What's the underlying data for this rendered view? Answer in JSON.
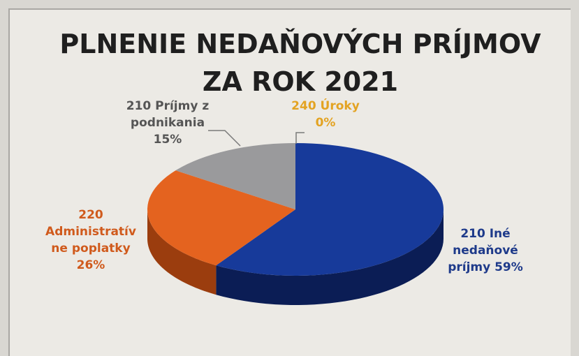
{
  "chart_data": {
    "type": "pie",
    "title_lines": [
      "PLNENIE NEDAŇOVÝCH PRÍJMOV",
      "ZA ROK 2021"
    ],
    "slices": [
      {
        "label_lines": [
          "210 Iné",
          "nedaňové",
          "príjmy  59%"
        ],
        "value": 59,
        "color": "#173a9a",
        "side_color": "#0b1d55",
        "label_color": "#1e3a8a"
      },
      {
        "label_lines": [
          "220",
          "Administratív",
          "ne poplatky",
          "26%"
        ],
        "value": 26,
        "color": "#e4631f",
        "side_color": "#9b3d0e",
        "label_color": "#d05a1c"
      },
      {
        "label_lines": [
          "210 Príjmy z",
          "podnikania",
          "15%"
        ],
        "value": 15,
        "color": "#9a9a9c",
        "side_color": "#606062",
        "label_color": "#555555"
      },
      {
        "label_lines": [
          "240 Úroky",
          "0%"
        ],
        "value": 0,
        "color": "#e7a11f",
        "side_color": "#a36e10",
        "label_color": "#e3a322"
      }
    ]
  }
}
